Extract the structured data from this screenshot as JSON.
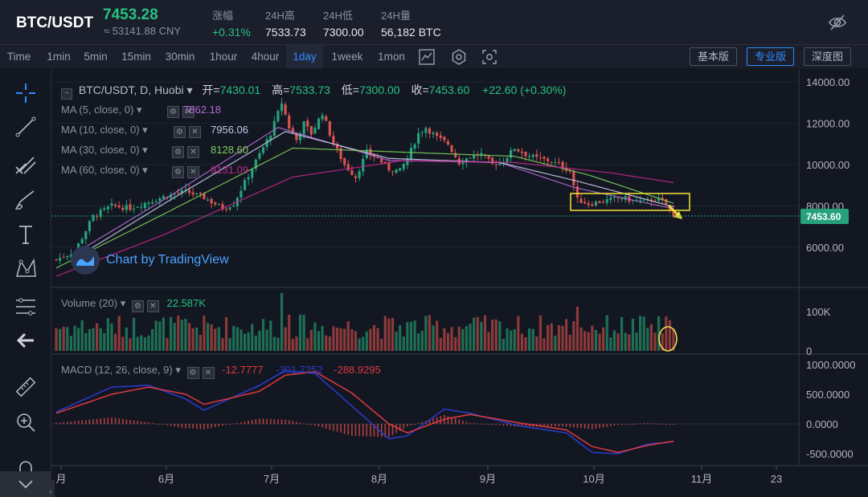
{
  "ticker": {
    "pair": "BTC/USDT",
    "price": "7453.28",
    "cny": "≈ 53141.88 CNY",
    "stats": [
      {
        "label": "涨幅",
        "value": "+0.31%",
        "up": true
      },
      {
        "label": "24H高",
        "value": "7533.73",
        "up": false
      },
      {
        "label": "24H低",
        "value": "7300.00",
        "up": false
      },
      {
        "label": "24H量",
        "value": "56,182 BTC",
        "up": false
      }
    ]
  },
  "toolbar": {
    "timeframes": [
      "Time",
      "1min",
      "5min",
      "15min",
      "30min",
      "1hour",
      "4hour",
      "1day",
      "1week",
      "1mon"
    ],
    "active_timeframe": "1day",
    "views": [
      "基本版",
      "专业版",
      "深度图"
    ],
    "active_view": "专业版"
  },
  "legend": {
    "symbol": "BTC/USDT, D, Huobi",
    "open_label": "开=",
    "open": "7430.01",
    "high_label": "高=",
    "high": "7533.73",
    "low_label": "低=",
    "low": "7300.00",
    "close_label": "收=",
    "close": "7453.60",
    "change": "+22.60 (+0.30%)"
  },
  "ma": [
    {
      "label": "MA (5, close, 0)",
      "value": "7862.18",
      "color": "#b36bd6"
    },
    {
      "label": "MA (10, close, 0)",
      "value": "7956.06",
      "color": "#c5cae9"
    },
    {
      "label": "MA (30, close, 0)",
      "value": "8128.60",
      "color": "#7ccf5a"
    },
    {
      "label": "MA (60, close, 0)",
      "value": "9131.09",
      "color": "#c2288f"
    }
  ],
  "volume": {
    "label": "Volume (20)",
    "value": "22.587K"
  },
  "macd": {
    "label": "MACD (12, 26, close, 9)",
    "hist": "-12.7777",
    "macd": "-301.7252",
    "signal": "-288.9295"
  },
  "watermark": "Chart by TradingView",
  "colors": {
    "up": "#26a17b",
    "down": "#d9534f",
    "accent": "#2f8cff",
    "bg": "#131722"
  },
  "chart_data": {
    "type": "candlestick",
    "price_axis": {
      "ticks": [
        "14000.00",
        "12000.00",
        "10000.00",
        "8000.00",
        "6000.00"
      ],
      "range": [
        4500,
        14300
      ]
    },
    "last_price_label": "7453.60",
    "volume_axis": {
      "ticks": [
        "100K",
        "0"
      ]
    },
    "macd_axis": {
      "ticks": [
        "1000.0000",
        "500.0000",
        "0.0000",
        "-500.0000"
      ]
    },
    "x_ticks": [
      "月",
      "6月",
      "7月",
      "8月",
      "9月",
      "10月",
      "11月",
      "23"
    ],
    "close_series": [
      [
        0,
        5400
      ],
      [
        5,
        5800
      ],
      [
        10,
        7500
      ],
      [
        15,
        8000
      ],
      [
        20,
        7900
      ],
      [
        25,
        8200
      ],
      [
        30,
        8500
      ],
      [
        35,
        8700
      ],
      [
        40,
        8400
      ],
      [
        45,
        7900
      ],
      [
        48,
        8100
      ],
      [
        50,
        8800
      ],
      [
        55,
        10500
      ],
      [
        58,
        11500
      ],
      [
        61,
        13000
      ],
      [
        63,
        11800
      ],
      [
        65,
        11200
      ],
      [
        67,
        12000
      ],
      [
        69,
        11500
      ],
      [
        72,
        12500
      ],
      [
        75,
        11000
      ],
      [
        78,
        10000
      ],
      [
        81,
        9400
      ],
      [
        84,
        10600
      ],
      [
        87,
        10300
      ],
      [
        90,
        9800
      ],
      [
        93,
        9700
      ],
      [
        95,
        10300
      ],
      [
        98,
        11500
      ],
      [
        100,
        11800
      ],
      [
        103,
        11300
      ],
      [
        106,
        11000
      ],
      [
        109,
        10100
      ],
      [
        112,
        10400
      ],
      [
        115,
        10500
      ],
      [
        118,
        10000
      ],
      [
        121,
        10200
      ],
      [
        124,
        10800
      ],
      [
        127,
        10500
      ],
      [
        130,
        10300
      ],
      [
        133,
        10200
      ],
      [
        136,
        10000
      ],
      [
        139,
        9700
      ],
      [
        141,
        8300
      ],
      [
        144,
        8100
      ],
      [
        147,
        8200
      ],
      [
        150,
        8300
      ],
      [
        153,
        8400
      ],
      [
        156,
        8250
      ],
      [
        159,
        8200
      ],
      [
        162,
        8350
      ],
      [
        165,
        8100
      ],
      [
        167,
        7450
      ]
    ],
    "ma_series": [
      {
        "name": "MA (5, close, 0)",
        "points": [
          [
            4,
            5600
          ],
          [
            30,
            8400
          ],
          [
            60,
            11800
          ],
          [
            90,
            10200
          ],
          [
            120,
            10100
          ],
          [
            140,
            8900
          ],
          [
            167,
            7860
          ]
        ]
      },
      {
        "name": "MA (10, close, 0)",
        "points": [
          [
            9,
            5900
          ],
          [
            30,
            8200
          ],
          [
            62,
            11600
          ],
          [
            90,
            10300
          ],
          [
            120,
            10100
          ],
          [
            141,
            9200
          ],
          [
            167,
            7960
          ]
        ]
      },
      {
        "name": "MA (30, close, 0)",
        "points": [
          [
            0,
            5000
          ],
          [
            29,
            7600
          ],
          [
            64,
            10800
          ],
          [
            94,
            10600
          ],
          [
            124,
            10400
          ],
          [
            144,
            9500
          ],
          [
            167,
            8130
          ]
        ]
      },
      {
        "name": "MA (60, close, 0)",
        "points": [
          [
            0,
            4600
          ],
          [
            29,
            6600
          ],
          [
            64,
            9400
          ],
          [
            94,
            10200
          ],
          [
            124,
            10100
          ],
          [
            150,
            9600
          ],
          [
            167,
            9130
          ]
        ]
      }
    ],
    "macd_series": [
      {
        "name": "MACD",
        "points": [
          [
            0,
            200
          ],
          [
            15,
            620
          ],
          [
            25,
            650
          ],
          [
            35,
            420
          ],
          [
            40,
            230
          ],
          [
            55,
            650
          ],
          [
            62,
            900
          ],
          [
            70,
            850
          ],
          [
            80,
            300
          ],
          [
            90,
            -250
          ],
          [
            95,
            -200
          ],
          [
            105,
            250
          ],
          [
            112,
            180
          ],
          [
            125,
            -30
          ],
          [
            138,
            -150
          ],
          [
            145,
            -480
          ],
          [
            152,
            -500
          ],
          [
            160,
            -340
          ],
          [
            167,
            -300
          ]
        ]
      },
      {
        "name": "Signal",
        "points": [
          [
            0,
            180
          ],
          [
            15,
            500
          ],
          [
            25,
            620
          ],
          [
            35,
            500
          ],
          [
            40,
            330
          ],
          [
            55,
            550
          ],
          [
            62,
            820
          ],
          [
            70,
            880
          ],
          [
            80,
            520
          ],
          [
            90,
            0
          ],
          [
            95,
            -150
          ],
          [
            105,
            80
          ],
          [
            112,
            160
          ],
          [
            125,
            20
          ],
          [
            138,
            -100
          ],
          [
            145,
            -380
          ],
          [
            152,
            -480
          ],
          [
            160,
            -360
          ],
          [
            167,
            -290
          ]
        ]
      }
    ]
  }
}
